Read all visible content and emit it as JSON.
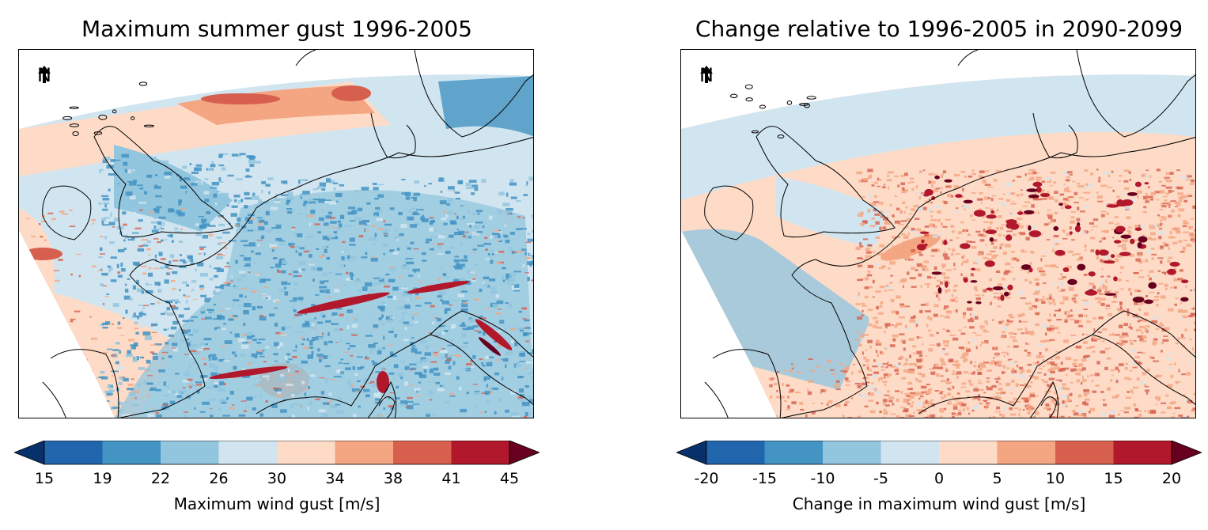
{
  "panels": [
    {
      "id": "baseline",
      "title": "Maximum summer gust 1996-2005",
      "north_label": "N",
      "colorbar": {
        "label": "Maximum wind gust [m/s]",
        "ticks": [
          "15",
          "19",
          "22",
          "26",
          "30",
          "34",
          "38",
          "41",
          "45"
        ],
        "colors": [
          "#08306b",
          "#2166ac",
          "#4393c3",
          "#92c5de",
          "#d1e5f0",
          "#fddbc7",
          "#f4a582",
          "#d6604d",
          "#b2182b",
          "#67001f"
        ]
      },
      "map_palette": {
        "sea_land_base": "#d1e5f0",
        "low": "#92c5de",
        "lower": "#4393c3",
        "high": "#f4a582",
        "higher": "#d6604d",
        "peak": "#b2182b",
        "extreme": "#67001f",
        "mid": "#fddbc7"
      }
    },
    {
      "id": "change",
      "title": "Change relative to 1996-2005 in 2090-2099",
      "north_label": "N",
      "colorbar": {
        "label": "Change in maximum wind gust [m/s]",
        "ticks": [
          "-20",
          "-15",
          "-10",
          "-5",
          "0",
          "5",
          "10",
          "15",
          "20"
        ],
        "colors": [
          "#08306b",
          "#2166ac",
          "#4393c3",
          "#92c5de",
          "#d1e5f0",
          "#fddbc7",
          "#f4a582",
          "#d6604d",
          "#b2182b",
          "#67001f"
        ]
      },
      "map_palette": {
        "sea_land_base": "#fddbc7",
        "low": "#92c5de",
        "lower": "#d1e5f0",
        "high": "#f4a582",
        "higher": "#d6604d",
        "peak": "#b2182b",
        "extreme": "#67001f",
        "mid": "#fddbc7"
      }
    }
  ]
}
